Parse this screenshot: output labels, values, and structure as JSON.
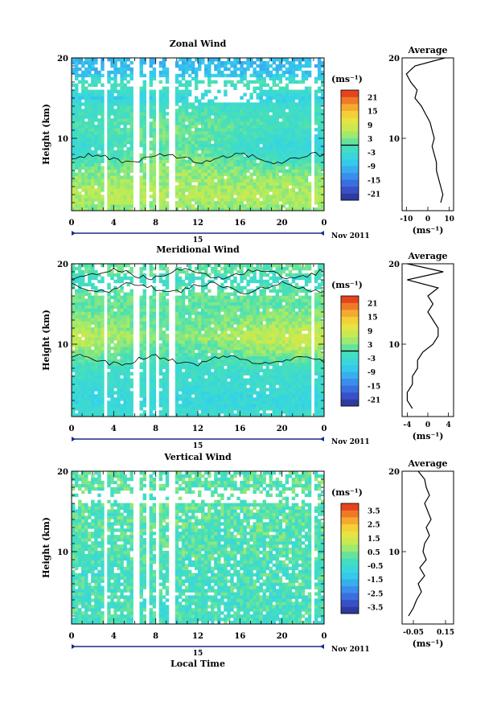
{
  "chart_data": [
    {
      "type": "heatmap",
      "title": "Zonal Wind",
      "xlabel": "",
      "ylabel": "Height (km)",
      "xticks": [
        "0",
        "4",
        "8",
        "12",
        "16",
        "20",
        "0"
      ],
      "yticks": [
        "10",
        "20"
      ],
      "xlim": [
        0,
        24
      ],
      "ylim": [
        1,
        20
      ],
      "date_day": "15",
      "date_label": "Nov 2011",
      "colorbar": {
        "unit": "(ms⁻¹)",
        "ticks": [
          "21",
          "15",
          "9",
          "3",
          "-3",
          "-9",
          "-15",
          "-21"
        ],
        "range": [
          -24,
          24
        ],
        "zero_line": true
      },
      "field": {
        "levels": [
          1,
          2,
          3,
          4,
          5,
          6,
          7,
          8,
          9,
          10,
          11,
          12,
          13,
          14,
          15,
          16,
          17,
          18,
          19
        ],
        "mean": [
          3,
          5,
          6,
          5,
          4,
          3,
          1,
          -1,
          -2,
          -1,
          0,
          0,
          -1,
          -2,
          -6,
          -2,
          -1,
          -8,
          -9
        ],
        "trend": [
          0,
          0,
          0,
          0,
          0,
          1,
          2,
          3,
          3,
          3,
          2,
          1,
          1,
          1,
          0,
          0,
          0,
          0,
          0
        ]
      },
      "data_gaps_hours": [
        [
          3.1,
          3.4
        ],
        [
          5.9,
          6.5
        ],
        [
          7.0,
          7.3
        ],
        [
          8.0,
          8.4
        ],
        [
          9.1,
          9.8
        ],
        [
          22.9,
          23.2
        ]
      ],
      "profile": {
        "title": "Average",
        "xlabel": "(ms⁻¹)",
        "xticks": [
          "-10",
          "0",
          "10"
        ],
        "xlim": [
          -12,
          12
        ],
        "yticks": [
          "10",
          "20"
        ],
        "ylim": [
          1,
          20
        ],
        "points": [
          [
            6,
            2
          ],
          [
            7,
            3
          ],
          [
            6,
            4
          ],
          [
            5,
            5
          ],
          [
            4,
            6
          ],
          [
            4,
            7
          ],
          [
            3,
            8
          ],
          [
            2,
            9
          ],
          [
            3,
            10
          ],
          [
            2,
            11
          ],
          [
            1,
            12
          ],
          [
            -1,
            13
          ],
          [
            -3,
            14
          ],
          [
            -6,
            15
          ],
          [
            -5,
            16
          ],
          [
            -8,
            17
          ],
          [
            -10,
            18
          ],
          [
            -6,
            19
          ],
          [
            8,
            20
          ]
        ]
      }
    },
    {
      "type": "heatmap",
      "title": "Meridional Wind",
      "xlabel": "",
      "ylabel": "Height (km)",
      "xticks": [
        "0",
        "4",
        "8",
        "12",
        "16",
        "20",
        "0"
      ],
      "yticks": [
        "10",
        "20"
      ],
      "xlim": [
        0,
        24
      ],
      "ylim": [
        1,
        20
      ],
      "date_day": "15",
      "date_label": "Nov 2011",
      "colorbar": {
        "unit": "(ms⁻¹)",
        "ticks": [
          "21",
          "15",
          "9",
          "3",
          "-3",
          "-9",
          "-15",
          "-21"
        ],
        "range": [
          -24,
          24
        ],
        "zero_line": true
      },
      "field": {
        "levels": [
          1,
          2,
          3,
          4,
          5,
          6,
          7,
          8,
          9,
          10,
          11,
          12,
          13,
          14,
          15,
          16,
          17,
          18,
          19
        ],
        "mean": [
          -3,
          -4,
          -5,
          -4,
          -3,
          -3,
          -2,
          0,
          2,
          4,
          6,
          4,
          3,
          2,
          1,
          2,
          0,
          -3,
          1
        ],
        "trend": [
          0,
          0,
          0,
          0,
          0,
          0,
          0,
          -1,
          -2,
          -3,
          -2,
          -2,
          -1,
          -1,
          0,
          0,
          0,
          0,
          0
        ]
      },
      "data_gaps_hours": [
        [
          3.1,
          3.4
        ],
        [
          5.9,
          6.5
        ],
        [
          7.0,
          7.3
        ],
        [
          8.0,
          8.4
        ],
        [
          9.1,
          9.8
        ],
        [
          22.9,
          23.2
        ]
      ],
      "profile": {
        "title": "Average",
        "xlabel": "(ms⁻¹)",
        "xticks": [
          "-4",
          "0",
          "4"
        ],
        "xlim": [
          -5,
          5
        ],
        "yticks": [
          "10",
          "20"
        ],
        "ylim": [
          1,
          20
        ],
        "points": [
          [
            -3,
            2
          ],
          [
            -4,
            3
          ],
          [
            -4,
            4
          ],
          [
            -3,
            5
          ],
          [
            -3,
            6
          ],
          [
            -2,
            7
          ],
          [
            -2,
            8
          ],
          [
            -1,
            9
          ],
          [
            1,
            10
          ],
          [
            2,
            11
          ],
          [
            2,
            12
          ],
          [
            1,
            13
          ],
          [
            0,
            14
          ],
          [
            1,
            15
          ],
          [
            0,
            16
          ],
          [
            2,
            17
          ],
          [
            -4,
            18
          ],
          [
            3,
            19
          ],
          [
            -4,
            20
          ]
        ]
      }
    },
    {
      "type": "heatmap",
      "title": "Vertical Wind",
      "xlabel": "Local Time",
      "ylabel": "Height (km)",
      "xticks": [
        "0",
        "4",
        "8",
        "12",
        "16",
        "20",
        "0"
      ],
      "yticks": [
        "10",
        "20"
      ],
      "xlim": [
        0,
        24
      ],
      "ylim": [
        1,
        20
      ],
      "date_day": "15",
      "date_label": "Nov 2011",
      "colorbar": {
        "unit": "(ms⁻¹)",
        "ticks": [
          "3.5",
          "2.5",
          "1.5",
          "0.5",
          "-0.5",
          "-1.5",
          "-2.5",
          "-3.5"
        ],
        "range": [
          -4,
          4
        ],
        "zero_line": false
      },
      "field": {
        "levels": [
          1,
          2,
          3,
          4,
          5,
          6,
          7,
          8,
          9,
          10,
          11,
          12,
          13,
          14,
          15,
          16,
          17,
          18,
          19
        ],
        "mean": [
          -0.3,
          -0.2,
          -0.2,
          -0.3,
          -0.2,
          -0.1,
          -0.2,
          -0.2,
          -0.1,
          0,
          -0.1,
          0,
          0.1,
          0.1,
          0,
          0.1,
          0,
          0.1,
          0.1
        ],
        "trend": [
          0,
          0,
          0,
          0,
          0,
          0,
          0,
          0,
          0,
          0,
          0,
          0,
          0,
          0,
          0,
          0,
          0,
          0,
          0
        ]
      },
      "data_gaps_hours": [
        [
          3.1,
          3.4
        ],
        [
          5.9,
          6.5
        ],
        [
          7.0,
          7.3
        ],
        [
          8.0,
          8.4
        ],
        [
          9.1,
          9.8
        ],
        [
          22.9,
          23.2
        ]
      ],
      "profile": {
        "title": "Average",
        "xlabel": "(ms⁻¹)",
        "xticks": [
          "-0.05",
          "0.15"
        ],
        "xlim": [
          -0.12,
          0.2
        ],
        "yticks": [
          "10",
          "20"
        ],
        "ylim": [
          1,
          20
        ],
        "points": [
          [
            -0.08,
            2
          ],
          [
            -0.05,
            3
          ],
          [
            -0.03,
            4
          ],
          [
            0,
            5
          ],
          [
            -0.02,
            6
          ],
          [
            0.02,
            7
          ],
          [
            -0.01,
            8
          ],
          [
            0.03,
            9
          ],
          [
            0.01,
            10
          ],
          [
            0.02,
            11
          ],
          [
            0.05,
            12
          ],
          [
            0.03,
            13
          ],
          [
            0.06,
            14
          ],
          [
            0.04,
            15
          ],
          [
            0.02,
            16
          ],
          [
            0.05,
            17
          ],
          [
            0.03,
            18
          ],
          [
            0.02,
            19
          ],
          [
            -0.02,
            20
          ]
        ]
      }
    }
  ]
}
